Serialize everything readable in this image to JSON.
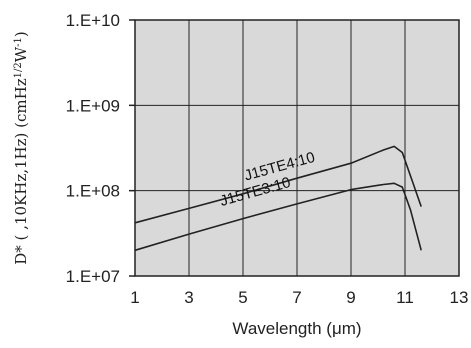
{
  "chart_data": {
    "type": "line",
    "title": "",
    "xlabel": "Wavelength (μm)",
    "ylabel": "D* (  ,10KHz,1Hz) (cmHz1/2W-1)",
    "ylabel_parts": {
      "main": "D* (  ,10KHz,1Hz) (cmHz",
      "sup1": "1/2",
      "mid": "W",
      "sup2": "-1",
      "end": ")"
    },
    "x_scale": "linear",
    "y_scale": "log",
    "xlim": [
      1,
      13
    ],
    "ylim": [
      10000000,
      10000000000
    ],
    "x_ticks": [
      1,
      3,
      5,
      7,
      9,
      11,
      13
    ],
    "x_tick_labels": [
      "1",
      "3",
      "5",
      "7",
      "9",
      "11",
      "13"
    ],
    "y_ticks": [
      10000000,
      100000000,
      1000000000,
      10000000000
    ],
    "y_tick_labels": [
      "1.E+07",
      "1.E+08",
      "1.E+09",
      "1.E+10"
    ],
    "grid": true,
    "plot_background": "#d9d9d9",
    "line_color": "#222222",
    "series": [
      {
        "name": "J15TE4:10",
        "label_anchor": [
          6.4,
          170000000
        ],
        "points": [
          [
            1,
            42000000
          ],
          [
            3,
            62000000
          ],
          [
            5,
            92000000
          ],
          [
            7,
            140000000
          ],
          [
            9,
            210000000
          ],
          [
            10.2,
            300000000
          ],
          [
            10.6,
            330000000
          ],
          [
            10.9,
            280000000
          ],
          [
            11.2,
            150000000
          ],
          [
            11.6,
            65000000
          ]
        ]
      },
      {
        "name": "J15TE3:10",
        "label_anchor": [
          5.5,
          86000000
        ],
        "points": [
          [
            1,
            20000000
          ],
          [
            3,
            31000000
          ],
          [
            5,
            47000000
          ],
          [
            7,
            70000000
          ],
          [
            9,
            103000000
          ],
          [
            10.2,
            118000000
          ],
          [
            10.6,
            122000000
          ],
          [
            10.9,
            110000000
          ],
          [
            11.2,
            60000000
          ],
          [
            11.6,
            20000000
          ]
        ]
      }
    ]
  }
}
